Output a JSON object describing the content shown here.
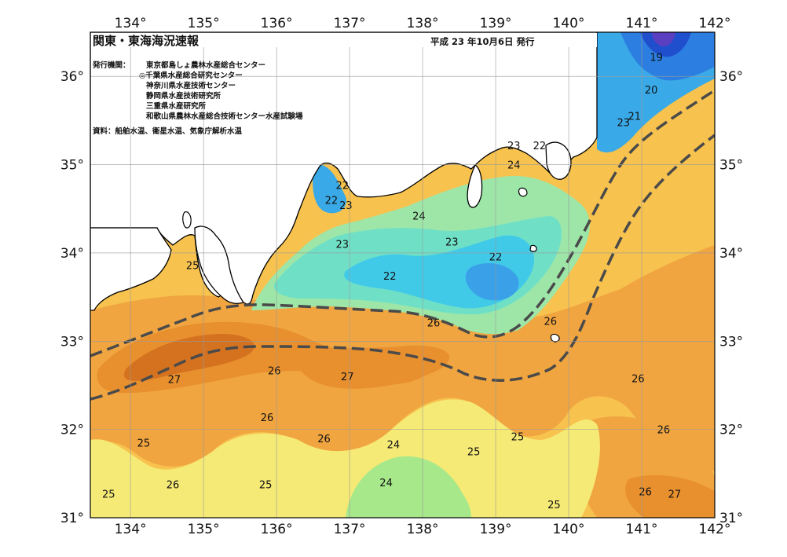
{
  "header": {
    "title": "関東・東海海況速報",
    "date": "平成 23 年10月6日 発行",
    "agency_label": "発行機関：",
    "agencies": [
      "東京都島しょ農林水産総合センター",
      "◎千葉県水産総合研究センター",
      "神奈川県水産技術センター",
      "静岡県水産技術研究所",
      "三重県水産研究所",
      "和歌山県農林水産総合技術センター水産試験場"
    ],
    "sources": "資料：船舶水温、衛星水温、気象庁解析水温"
  },
  "axes": {
    "lon_labels": [
      "134°",
      "135°",
      "136°",
      "137°",
      "138°",
      "139°",
      "140°",
      "141°",
      "142°"
    ],
    "lat_labels": [
      "31°",
      "32°",
      "33°",
      "34°",
      "35°",
      "36°"
    ],
    "lat_labels_right": [
      "31°",
      "32°",
      "33°",
      "34°",
      "35°",
      "36°"
    ]
  },
  "isotherm_labels": [
    {
      "text": "19",
      "lon": 141.2,
      "lat": 36.22
    },
    {
      "text": "20",
      "lon": 141.13,
      "lat": 35.85
    },
    {
      "text": "21",
      "lon": 140.9,
      "lat": 35.55
    },
    {
      "text": "23",
      "lon": 140.75,
      "lat": 35.48
    },
    {
      "text": "22",
      "lon": 139.6,
      "lat": 35.22
    },
    {
      "text": "23",
      "lon": 139.25,
      "lat": 35.22
    },
    {
      "text": "24",
      "lon": 139.25,
      "lat": 35.0
    },
    {
      "text": "22",
      "lon": 136.9,
      "lat": 34.77
    },
    {
      "text": "22",
      "lon": 136.75,
      "lat": 34.6
    },
    {
      "text": "23",
      "lon": 136.95,
      "lat": 34.54
    },
    {
      "text": "24",
      "lon": 137.95,
      "lat": 34.42
    },
    {
      "text": "23",
      "lon": 136.9,
      "lat": 34.1
    },
    {
      "text": "23",
      "lon": 138.4,
      "lat": 34.13
    },
    {
      "text": "22",
      "lon": 139.0,
      "lat": 33.96
    },
    {
      "text": "22",
      "lon": 137.55,
      "lat": 33.74
    },
    {
      "text": "25",
      "lon": 134.85,
      "lat": 33.86
    },
    {
      "text": "26",
      "lon": 138.15,
      "lat": 33.21
    },
    {
      "text": "26",
      "lon": 139.75,
      "lat": 33.23
    },
    {
      "text": "27",
      "lon": 134.6,
      "lat": 32.57
    },
    {
      "text": "26",
      "lon": 135.97,
      "lat": 32.67
    },
    {
      "text": "27",
      "lon": 136.97,
      "lat": 32.6
    },
    {
      "text": "26",
      "lon": 140.95,
      "lat": 32.58
    },
    {
      "text": "26",
      "lon": 135.87,
      "lat": 32.14
    },
    {
      "text": "26",
      "lon": 136.65,
      "lat": 31.9
    },
    {
      "text": "26",
      "lon": 141.3,
      "lat": 32.0
    },
    {
      "text": "25",
      "lon": 134.18,
      "lat": 31.85
    },
    {
      "text": "24",
      "lon": 137.6,
      "lat": 31.83
    },
    {
      "text": "25",
      "lon": 138.7,
      "lat": 31.75
    },
    {
      "text": "25",
      "lon": 139.3,
      "lat": 31.92
    },
    {
      "text": "26",
      "lon": 134.58,
      "lat": 31.38
    },
    {
      "text": "25",
      "lon": 135.85,
      "lat": 31.38
    },
    {
      "text": "24",
      "lon": 137.5,
      "lat": 31.4
    },
    {
      "text": "25",
      "lon": 139.8,
      "lat": 31.15
    },
    {
      "text": "25",
      "lon": 133.7,
      "lat": 31.27
    },
    {
      "text": "26",
      "lon": 141.05,
      "lat": 31.3
    },
    {
      "text": "27",
      "lon": 141.45,
      "lat": 31.27
    }
  ]
}
